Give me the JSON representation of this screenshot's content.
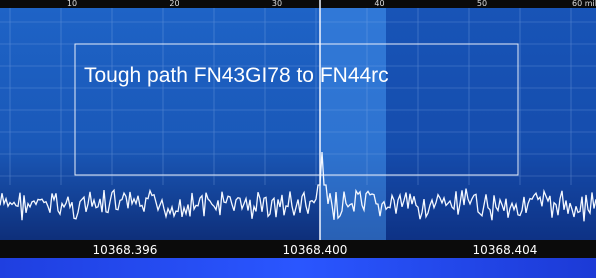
{
  "ruler": {
    "labels": [
      "10",
      "20",
      "30",
      "40",
      "50",
      "60 mil"
    ]
  },
  "annotation": "Tough path FN43GI78 to FN44rc",
  "frequency_labels": [
    "10368.396",
    "10368.400",
    "10368.404"
  ]
}
